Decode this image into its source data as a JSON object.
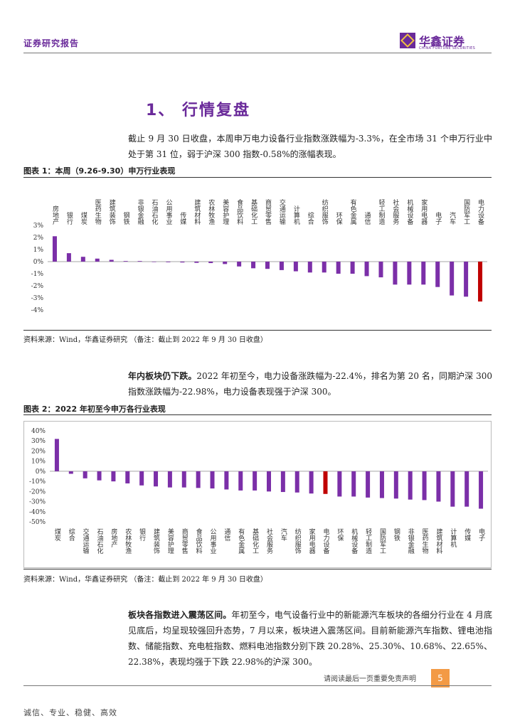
{
  "header": {
    "title": "证券研究报告",
    "logo_cn": "华鑫证券",
    "logo_en": "CHINA FORTUNE SECURITIES"
  },
  "section": {
    "title": "1、 行情复盘"
  },
  "para1": "截止 9 月 30 日收盘，本周申万电力设备行业指数涨跌幅为-3.3%，在全市场 31 个申万行业中处于第 31 位，弱于沪深 300 指数-0.58%的涨幅表现。",
  "figure1": {
    "title": "图表 1：本周（9.26-9.30）申万行业表现",
    "source": "资料来源：Wind，华鑫证券研究 （备注：截止到 2022 年 9 月 30 日收盘）"
  },
  "para2": {
    "bold": "年内板块仍下跌。",
    "text": "2022 年初至今，电力设备涨跌幅为-22.4%，排名为第 20 名，同期沪深 300 指数涨跌幅为-22.98%，电力设备表现强于沪深 300。"
  },
  "figure2": {
    "title": "图表 2：2022 年初至今申万各行业表现",
    "source": "资料来源：Wind，华鑫证券研究 （备注：截止到 2022 年 9 月 30 日收盘）"
  },
  "para3": {
    "bold": "板块各指数进入震荡区间。",
    "text": "年初至今，电气设备行业中的新能源汽车板块的各细分行业在 4 月底见底后，均呈现较强回升态势，7 月以来，板块进入震荡区间。目前新能源汽车指数、锂电池指数、储能指数、充电桩指数、燃料电池指数分别下跌 20.28%、25.30%、10.68%、22.65%、22.38%，表现均强于下跌 22.98%的沪深 300。"
  },
  "footer": {
    "note": "请阅读最后一页重要免责声明",
    "page": "5",
    "motto": "诚信、专业、稳健、高效"
  },
  "colors": {
    "bar": "#7b2fa8",
    "highlight": "#c00000",
    "accent": "#6a2a9a"
  },
  "chart_data": [
    {
      "type": "bar",
      "title": "图表 1：本周（9.26-9.30）申万行业表现",
      "categories": [
        "房地产",
        "银行",
        "煤炭",
        "医药生物",
        "建筑装饰",
        "钢铁",
        "非银金融",
        "石油石化",
        "公用事业",
        "传媒",
        "建筑材料",
        "农林牧渔",
        "美容护理",
        "食品饮料",
        "基础化工",
        "商贸零售",
        "交通运输",
        "计算机",
        "综合",
        "纺织服饰",
        "环保",
        "有色金属",
        "通信",
        "轻工制造",
        "社会服务",
        "机械设备",
        "家用电器",
        "电子",
        "汽车",
        "国防军工",
        "电力设备"
      ],
      "values": [
        2.1,
        0.7,
        0.4,
        0.25,
        0.15,
        0.05,
        0.05,
        -0.02,
        -0.05,
        -0.07,
        -0.1,
        -0.12,
        -0.2,
        -0.4,
        -0.55,
        -0.6,
        -0.7,
        -0.8,
        -0.9,
        -0.9,
        -1.0,
        -1.0,
        -1.2,
        -1.3,
        -1.9,
        -1.9,
        -1.9,
        -2.1,
        -2.8,
        -2.9,
        -3.3
      ],
      "highlight": "电力设备",
      "ylim": [
        -4,
        3
      ],
      "yticks": [
        "3%",
        "2%",
        "1%",
        "0%",
        "-1%",
        "-2%",
        "-3%",
        "-4%"
      ],
      "xlabel": "",
      "ylabel": "",
      "grid": false
    },
    {
      "type": "bar",
      "title": "图表 2：2022 年初至今申万各行业表现",
      "categories": [
        "煤炭",
        "综合",
        "交通运输",
        "石油石化",
        "房地产",
        "农林牧渔",
        "银行",
        "建筑装饰",
        "美容护理",
        "商贸零售",
        "食品饮料",
        "公用事业",
        "通信",
        "有色金属",
        "基础化工",
        "社会服务",
        "汽车",
        "纺织服饰",
        "家用电器",
        "电力设备",
        "环保",
        "机械设备",
        "轻工制造",
        "国防军工",
        "钢铁",
        "非银金融",
        "医药生物",
        "建筑材料",
        "计算机",
        "传媒",
        "电子"
      ],
      "values": [
        32,
        -2.5,
        -7,
        -9,
        -10,
        -12,
        -14,
        -15,
        -16,
        -16,
        -16.5,
        -17,
        -18,
        -19,
        -19,
        -20,
        -20.5,
        -21,
        -22,
        -22.4,
        -25,
        -25,
        -26,
        -26.5,
        -27,
        -28,
        -28.5,
        -30,
        -35,
        -35,
        -37
      ],
      "highlight": "电力设备",
      "ylim": [
        -50,
        40
      ],
      "yticks": [
        "40%",
        "30%",
        "20%",
        "10%",
        "0%",
        "-10%",
        "-20%",
        "-30%",
        "-40%",
        "-50%"
      ],
      "xlabel": "",
      "ylabel": "",
      "grid": false
    }
  ]
}
